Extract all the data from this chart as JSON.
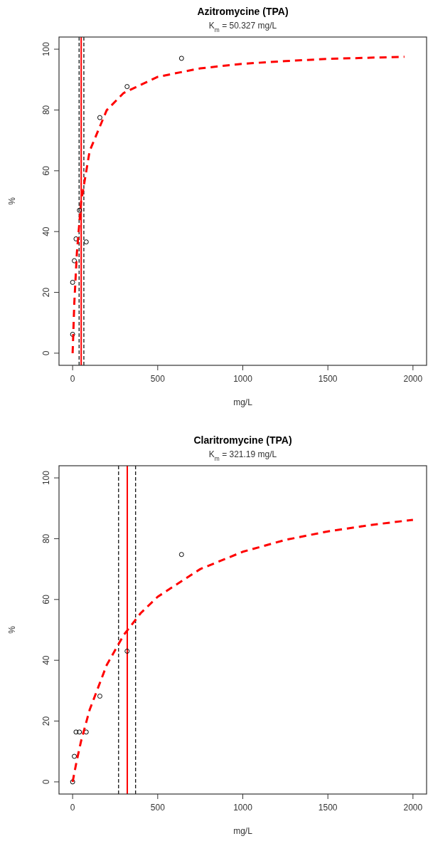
{
  "chart_data": [
    {
      "type": "scatter",
      "title": "Azitromycine (TPA)",
      "subtitle": "K$_{m}$ = 50.327 mg/L",
      "xlabel": "mg/L",
      "ylabel": "%",
      "xlim": [
        -80,
        2080
      ],
      "ylim": [
        -4,
        104
      ],
      "xticks": [
        0,
        500,
        1000,
        1500,
        2000
      ],
      "yticks": [
        0,
        20,
        40,
        60,
        80,
        100
      ],
      "grid": false,
      "series": [
        {
          "color": "#000000",
          "marker": "circle",
          "x": [
            0,
            0,
            10,
            20,
            40,
            80,
            160,
            320,
            640
          ],
          "values": [
            6.2,
            23.3,
            30.4,
            37.6,
            47,
            36.6,
            77.5,
            87.7,
            97
          ]
        },
        {
          "type": "line",
          "color": "#ff0000",
          "marker": "none",
          "line_style": "dashed",
          "x": [
            0,
            10,
            25,
            50,
            100,
            200,
            300,
            500,
            750,
            1000,
            1250,
            1500,
            1750,
            1950
          ],
          "values": [
            0,
            16.6,
            33,
            49.8,
            66.5,
            79.9,
            85.6,
            90.9,
            93.7,
            95.2,
            96.1,
            96.8,
            97.2,
            97.5
          ]
        }
      ],
      "ref_lines": [
        {
          "axis": "x",
          "value": 50.327,
          "color": "#ff0000",
          "line_style": "solid"
        },
        {
          "axis": "x",
          "value": 38,
          "color": "#000000",
          "line_style": "dashed"
        },
        {
          "axis": "x",
          "value": 66,
          "color": "#000000",
          "line_style": "dashed"
        }
      ]
    },
    {
      "type": "scatter",
      "title": "Claritromycine (TPA)",
      "subtitle": "K$_{m}$ = 321.19 mg/L",
      "xlabel": "mg/L",
      "ylabel": "%",
      "xlim": [
        -80,
        2080
      ],
      "ylim": [
        -4,
        104
      ],
      "xticks": [
        0,
        500,
        1000,
        1500,
        2000
      ],
      "yticks": [
        0,
        20,
        40,
        60,
        80,
        100
      ],
      "grid": false,
      "series": [
        {
          "color": "#000000",
          "marker": "circle",
          "x": [
            0,
            10,
            20,
            40,
            80,
            160,
            320,
            640
          ],
          "values": [
            0,
            8.4,
            16.4,
            16.4,
            16.4,
            28.2,
            43,
            74.8
          ]
        },
        {
          "type": "line",
          "color": "#ff0000",
          "marker": "none",
          "line_style": "dashed",
          "x": [
            0,
            25,
            50,
            100,
            200,
            300,
            400,
            500,
            750,
            1000,
            1250,
            1500,
            1750,
            2000
          ],
          "values": [
            0,
            7.2,
            13.5,
            23.7,
            38.4,
            48.3,
            55.5,
            60.9,
            70,
            75.7,
            79.6,
            82.4,
            84.5,
            86.2
          ]
        }
      ],
      "ref_lines": [
        {
          "axis": "x",
          "value": 321.19,
          "color": "#ff0000",
          "line_style": "solid"
        },
        {
          "axis": "x",
          "value": 270,
          "color": "#000000",
          "line_style": "dashed"
        },
        {
          "axis": "x",
          "value": 370,
          "color": "#000000",
          "line_style": "dashed"
        }
      ]
    }
  ]
}
